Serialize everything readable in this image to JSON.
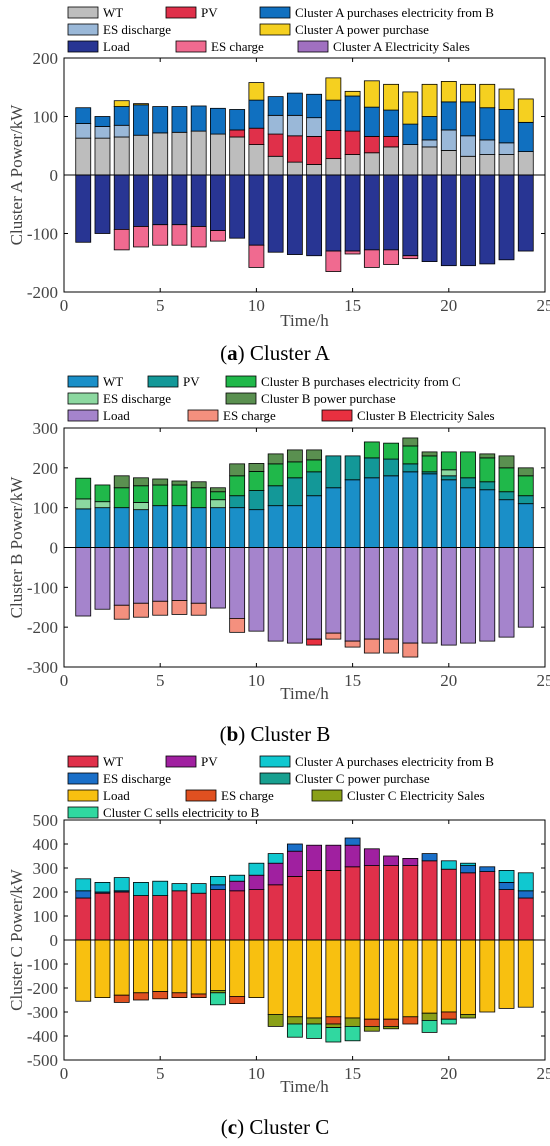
{
  "chart_data": [
    {
      "type": "bar",
      "stacked": true,
      "ylabel": "Cluster A  Power/kW",
      "xlabel": "Time/h",
      "caption_tag": "(a)",
      "caption_text": "Cluster A",
      "xlim": [
        0,
        25
      ],
      "ylim": [
        -200,
        200
      ],
      "xticks": [
        0,
        5,
        10,
        15,
        20,
        25
      ],
      "yticks": [
        -200,
        -100,
        0,
        100,
        200
      ],
      "x": [
        1,
        2,
        3,
        4,
        5,
        6,
        7,
        8,
        9,
        10,
        11,
        12,
        13,
        14,
        15,
        16,
        17,
        18,
        19,
        20,
        21,
        22,
        23,
        24
      ],
      "legend": [
        {
          "key": "wt",
          "label": "WT"
        },
        {
          "key": "pv",
          "label": "PV"
        },
        {
          "key": "pur",
          "label": "Cluster A purchases electricity from B"
        },
        {
          "key": "esd",
          "label": "ES discharge"
        },
        {
          "key": "pp",
          "label": "Cluster A power purchase"
        },
        {
          "key": "load",
          "label": "Load"
        },
        {
          "key": "esc",
          "label": "ES charge"
        },
        {
          "key": "sale",
          "label": "Cluster A Electricity Sales"
        }
      ],
      "series_colors": {
        "wt": "#bdbdbd",
        "pv": "#e0304a",
        "pur": "#1070c0",
        "esd": "#9ab8d8",
        "pp": "#f5d020",
        "load": "#283593",
        "esc": "#f06a90",
        "sale": "#a070c0"
      },
      "positive_order": [
        "wt",
        "pv",
        "esd",
        "pur",
        "pp"
      ],
      "negative_order": [
        "load",
        "esc",
        "sale"
      ],
      "series": [
        {
          "key": "wt",
          "name": "WT",
          "values": [
            63,
            63,
            65,
            68,
            72,
            73,
            75,
            70,
            65,
            52,
            32,
            22,
            18,
            28,
            35,
            38,
            48,
            52,
            48,
            42,
            32,
            35,
            35,
            40
          ]
        },
        {
          "key": "pv",
          "name": "PV",
          "values": [
            0,
            0,
            0,
            0,
            0,
            0,
            0,
            0,
            12,
            28,
            38,
            45,
            48,
            48,
            40,
            28,
            18,
            0,
            0,
            0,
            0,
            0,
            0,
            0
          ]
        },
        {
          "key": "esd",
          "name": "ES discharge",
          "values": [
            25,
            20,
            20,
            0,
            0,
            0,
            0,
            0,
            0,
            0,
            32,
            35,
            32,
            0,
            0,
            0,
            0,
            0,
            12,
            35,
            35,
            25,
            20,
            0
          ]
        },
        {
          "key": "pur",
          "name": "Cluster A purchases electricity from B",
          "values": [
            27,
            17,
            32,
            52,
            45,
            44,
            43,
            44,
            35,
            48,
            32,
            38,
            40,
            52,
            60,
            50,
            45,
            35,
            40,
            48,
            58,
            55,
            57,
            50
          ]
        },
        {
          "key": "pp",
          "name": "Cluster A power purchase",
          "values": [
            0,
            0,
            10,
            2,
            0,
            0,
            0,
            0,
            0,
            30,
            0,
            0,
            0,
            38,
            8,
            45,
            44,
            55,
            55,
            35,
            30,
            40,
            35,
            40
          ]
        },
        {
          "key": "load",
          "name": "Load",
          "values": [
            -115,
            -100,
            -93,
            -88,
            -85,
            -85,
            -88,
            -95,
            -108,
            -120,
            -132,
            -136,
            -138,
            -130,
            -130,
            -128,
            -128,
            -138,
            -148,
            -155,
            -155,
            -152,
            -145,
            -130
          ]
        },
        {
          "key": "esc",
          "name": "ES charge",
          "values": [
            0,
            0,
            -35,
            -35,
            -35,
            -35,
            -35,
            -18,
            0,
            -38,
            0,
            0,
            0,
            -35,
            -5,
            -30,
            -25,
            -5,
            0,
            0,
            0,
            0,
            0,
            0
          ]
        },
        {
          "key": "sale",
          "name": "Cluster A Electricity Sales",
          "values": [
            0,
            0,
            0,
            0,
            0,
            0,
            0,
            0,
            0,
            0,
            0,
            0,
            0,
            0,
            0,
            0,
            0,
            0,
            0,
            0,
            0,
            0,
            0,
            0
          ]
        }
      ]
    },
    {
      "type": "bar",
      "stacked": true,
      "ylabel": "Cluster B Power/kW",
      "xlabel": "Time/h",
      "caption_tag": "(b)",
      "caption_text": "Cluster B",
      "xlim": [
        0,
        25
      ],
      "ylim": [
        -300,
        300
      ],
      "xticks": [
        0,
        5,
        10,
        15,
        20,
        25
      ],
      "yticks": [
        -300,
        -200,
        -100,
        0,
        100,
        200,
        300
      ],
      "x": [
        1,
        2,
        3,
        4,
        5,
        6,
        7,
        8,
        9,
        10,
        11,
        12,
        13,
        14,
        15,
        16,
        17,
        18,
        19,
        20,
        21,
        22,
        23,
        24
      ],
      "legend": [
        {
          "key": "wt",
          "label": "WT"
        },
        {
          "key": "pv",
          "label": "PV"
        },
        {
          "key": "pur",
          "label": "Cluster B purchases electricity from C"
        },
        {
          "key": "esd",
          "label": "ES discharge"
        },
        {
          "key": "pp",
          "label": "Cluster B power purchase"
        },
        {
          "key": "load",
          "label": "Load"
        },
        {
          "key": "esc",
          "label": "ES charge"
        },
        {
          "key": "sale",
          "label": "Cluster B Electricity Sales"
        }
      ],
      "series_colors": {
        "wt": "#1a8fc8",
        "pv": "#139898",
        "pur": "#20b84a",
        "esd": "#8cd8a0",
        "pp": "#5a9050",
        "load": "#a584cc",
        "esc": "#f4907e",
        "sale": "#e83040"
      },
      "positive_order": [
        "wt",
        "pv",
        "esd",
        "pur",
        "pp"
      ],
      "negative_order": [
        "load",
        "esc",
        "sale"
      ],
      "series": [
        {
          "key": "wt",
          "name": "WT",
          "values": [
            97,
            100,
            100,
            95,
            105,
            105,
            100,
            100,
            100,
            95,
            105,
            105,
            130,
            150,
            170,
            175,
            180,
            190,
            185,
            170,
            150,
            145,
            120,
            110
          ]
        },
        {
          "key": "pv",
          "name": "PV",
          "values": [
            0,
            0,
            0,
            0,
            0,
            0,
            0,
            0,
            30,
            48,
            50,
            70,
            60,
            80,
            60,
            50,
            42,
            20,
            5,
            10,
            25,
            20,
            20,
            20
          ]
        },
        {
          "key": "esd",
          "name": "ES discharge",
          "values": [
            25,
            15,
            0,
            18,
            0,
            0,
            0,
            20,
            0,
            0,
            0,
            0,
            0,
            0,
            0,
            0,
            0,
            0,
            0,
            15,
            0,
            0,
            0,
            0
          ]
        },
        {
          "key": "pur",
          "name": "Cluster B purchases electricity from C",
          "values": [
            52,
            42,
            50,
            42,
            52,
            52,
            50,
            20,
            50,
            48,
            55,
            40,
            30,
            0,
            0,
            40,
            40,
            45,
            40,
            45,
            65,
            60,
            60,
            50
          ]
        },
        {
          "key": "pp",
          "name": "Cluster B power purchase",
          "values": [
            0,
            0,
            30,
            20,
            15,
            10,
            15,
            10,
            30,
            20,
            25,
            30,
            25,
            0,
            0,
            0,
            0,
            20,
            10,
            0,
            0,
            10,
            30,
            20
          ]
        },
        {
          "key": "load",
          "name": "Load",
          "values": [
            -172,
            -155,
            -145,
            -140,
            -135,
            -133,
            -140,
            -152,
            -178,
            -210,
            -235,
            -240,
            -230,
            -215,
            -235,
            -230,
            -230,
            -240,
            -240,
            -245,
            -240,
            -235,
            -225,
            -200
          ]
        },
        {
          "key": "esc",
          "name": "ES charge",
          "values": [
            0,
            0,
            -35,
            -35,
            -35,
            -35,
            -30,
            0,
            -35,
            0,
            0,
            0,
            0,
            -15,
            -15,
            -35,
            -35,
            -35,
            0,
            0,
            0,
            0,
            0,
            0
          ]
        },
        {
          "key": "sale",
          "name": "Cluster B Electricity Sales",
          "values": [
            0,
            0,
            0,
            0,
            0,
            0,
            0,
            0,
            0,
            0,
            0,
            0,
            -15,
            0,
            0,
            0,
            0,
            0,
            0,
            0,
            0,
            0,
            0,
            0
          ]
        }
      ]
    },
    {
      "type": "bar",
      "stacked": true,
      "ylabel": "Cluster C Power/kW",
      "xlabel": "Time/h",
      "caption_tag": "(c)",
      "caption_text": "Cluster C",
      "xlim": [
        0,
        25
      ],
      "ylim": [
        -500,
        500
      ],
      "xticks": [
        0,
        5,
        10,
        15,
        20,
        25
      ],
      "yticks": [
        -500,
        -400,
        -300,
        -200,
        -100,
        0,
        100,
        200,
        300,
        400,
        500
      ],
      "x": [
        1,
        2,
        3,
        4,
        5,
        6,
        7,
        8,
        9,
        10,
        11,
        12,
        13,
        14,
        15,
        16,
        17,
        18,
        19,
        20,
        21,
        22,
        23,
        24
      ],
      "legend": [
        {
          "key": "wt",
          "label": "WT"
        },
        {
          "key": "pv",
          "label": "PV"
        },
        {
          "key": "pur",
          "label": "Cluster A purchases electricity from B"
        },
        {
          "key": "esd",
          "label": "ES discharge"
        },
        {
          "key": "pp",
          "label": "Cluster C power purchase"
        },
        {
          "key": "load",
          "label": "Load"
        },
        {
          "key": "esc",
          "label": "ES charge"
        },
        {
          "key": "sale",
          "label": "Cluster C Electricity Sales"
        },
        {
          "key": "sellb",
          "label": "Cluster C sells electricity to B"
        }
      ],
      "series_colors": {
        "wt": "#e0304a",
        "pv": "#a020a0",
        "pur": "#10c8d0",
        "esd": "#1a6fc8",
        "pp": "#18a090",
        "load": "#f8c010",
        "esc": "#e05020",
        "sale": "#8aa018",
        "sellb": "#30d8a0"
      },
      "positive_order": [
        "wt",
        "pv",
        "esd",
        "pp",
        "pur"
      ],
      "negative_order": [
        "load",
        "esc",
        "sale",
        "sellb"
      ],
      "series": [
        {
          "key": "wt",
          "name": "WT",
          "values": [
            175,
            195,
            200,
            185,
            185,
            205,
            195,
            210,
            205,
            210,
            230,
            265,
            290,
            290,
            305,
            310,
            310,
            310,
            330,
            295,
            280,
            285,
            210,
            175
          ]
        },
        {
          "key": "pv",
          "name": "PV",
          "values": [
            0,
            0,
            0,
            0,
            0,
            0,
            0,
            0,
            40,
            60,
            90,
            105,
            105,
            105,
            90,
            70,
            40,
            30,
            0,
            0,
            0,
            0,
            0,
            0
          ]
        },
        {
          "key": "esd",
          "name": "ES discharge",
          "values": [
            30,
            5,
            5,
            0,
            0,
            0,
            0,
            20,
            0,
            0,
            0,
            30,
            0,
            0,
            30,
            0,
            0,
            0,
            30,
            0,
            30,
            20,
            30,
            30
          ]
        },
        {
          "key": "pp",
          "name": "Cluster C power purchase",
          "values": [
            0,
            0,
            0,
            0,
            0,
            0,
            0,
            0,
            0,
            0,
            0,
            0,
            0,
            0,
            0,
            0,
            0,
            0,
            0,
            0,
            0,
            0,
            0,
            0
          ]
        },
        {
          "key": "pur",
          "name": "Cluster A purchases electricity from B",
          "values": [
            50,
            40,
            55,
            55,
            60,
            30,
            40,
            35,
            25,
            50,
            40,
            0,
            0,
            0,
            0,
            0,
            0,
            0,
            0,
            35,
            10,
            0,
            50,
            75
          ]
        },
        {
          "key": "load",
          "name": "Load",
          "values": [
            -255,
            -240,
            -230,
            -220,
            -215,
            -220,
            -225,
            -210,
            -235,
            -240,
            -310,
            -320,
            -325,
            -320,
            -325,
            -330,
            -330,
            -320,
            -305,
            -300,
            -310,
            -300,
            -285,
            -280
          ]
        },
        {
          "key": "esc",
          "name": "ES charge",
          "values": [
            0,
            0,
            -30,
            -30,
            -30,
            -20,
            -15,
            0,
            -30,
            0,
            0,
            0,
            0,
            -30,
            0,
            -30,
            -30,
            -30,
            0,
            -30,
            0,
            0,
            0,
            0
          ]
        },
        {
          "key": "sale",
          "name": "Cluster C Electricity Sales",
          "values": [
            0,
            0,
            0,
            0,
            0,
            0,
            0,
            -10,
            0,
            0,
            -50,
            -30,
            -25,
            -15,
            -35,
            -20,
            -10,
            0,
            -30,
            0,
            -15,
            0,
            0,
            0
          ]
        },
        {
          "key": "sellb",
          "name": "Cluster C sells electricity to B",
          "values": [
            0,
            0,
            0,
            0,
            0,
            0,
            0,
            -50,
            0,
            0,
            0,
            -55,
            -60,
            -60,
            -60,
            0,
            0,
            0,
            -50,
            -20,
            0,
            0,
            0,
            0
          ]
        }
      ]
    }
  ]
}
